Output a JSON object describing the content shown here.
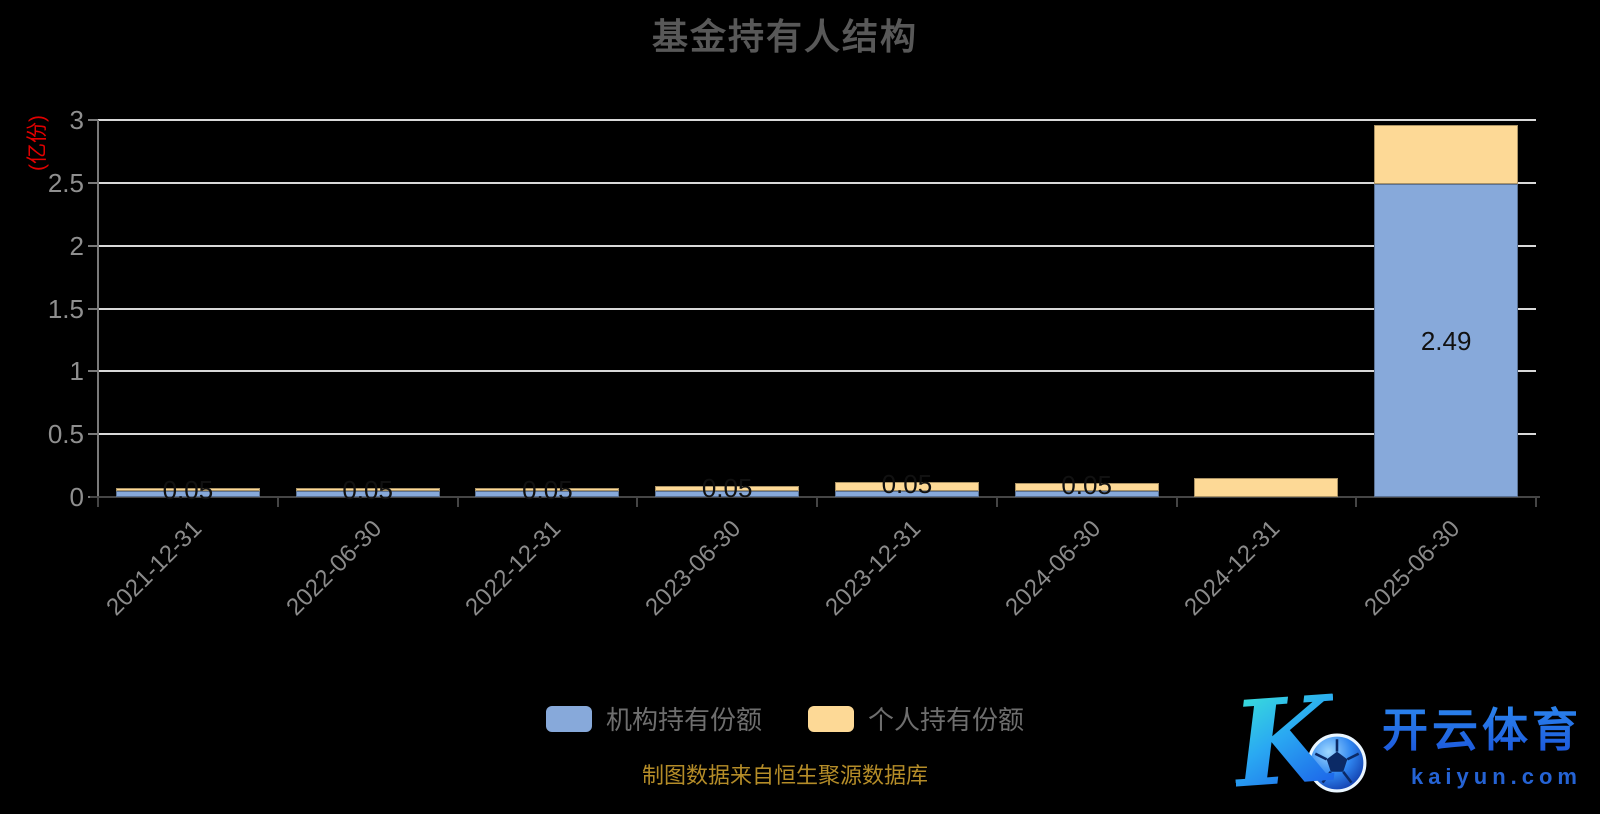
{
  "title": "基金持有人结构",
  "y_axis": {
    "unit_label": "(亿份)",
    "tick_labels": [
      "0",
      "0.5",
      "1",
      "1.5",
      "2",
      "2.5",
      "3"
    ],
    "tick_values": [
      0,
      0.5,
      1,
      1.5,
      2,
      2.5,
      3
    ]
  },
  "chart_data": {
    "type": "bar",
    "stacked": true,
    "title": "基金持有人结构",
    "ylabel": "(亿份)",
    "xlabel": "",
    "ylim": [
      0,
      3
    ],
    "grid": true,
    "legend_position": "bottom",
    "categories": [
      "2021-12-31",
      "2022-06-30",
      "2022-12-31",
      "2023-06-30",
      "2023-12-31",
      "2024-06-30",
      "2024-12-31",
      "2025-06-30"
    ],
    "series": [
      {
        "name": "机构持有份额",
        "color": "#87a9da",
        "values": [
          0.05,
          0.05,
          0.05,
          0.05,
          0.05,
          0.05,
          0,
          2.49
        ],
        "data_labels": [
          "0.05",
          "0.05",
          "0.05",
          "0.05",
          "0.05",
          "0.05",
          "",
          "2.49"
        ]
      },
      {
        "name": "个人持有份额",
        "color": "#fdd996",
        "values": [
          0.02,
          0.02,
          0.02,
          0.04,
          0.07,
          0.06,
          0.15,
          0.47
        ],
        "data_labels": [
          "",
          "",
          "",
          "",
          "",
          "",
          "",
          ""
        ]
      }
    ]
  },
  "legend": {
    "items": [
      {
        "label": "机构持有份额",
        "color": "#87a9da"
      },
      {
        "label": "个人持有份额",
        "color": "#fdd996"
      }
    ]
  },
  "footer": {
    "source_note": "制图数据来自恒生聚源数据库"
  },
  "watermark": {
    "brand": "开云体育",
    "domain": "kaiyun.com",
    "icon": "soccer-ball-k-logo"
  }
}
